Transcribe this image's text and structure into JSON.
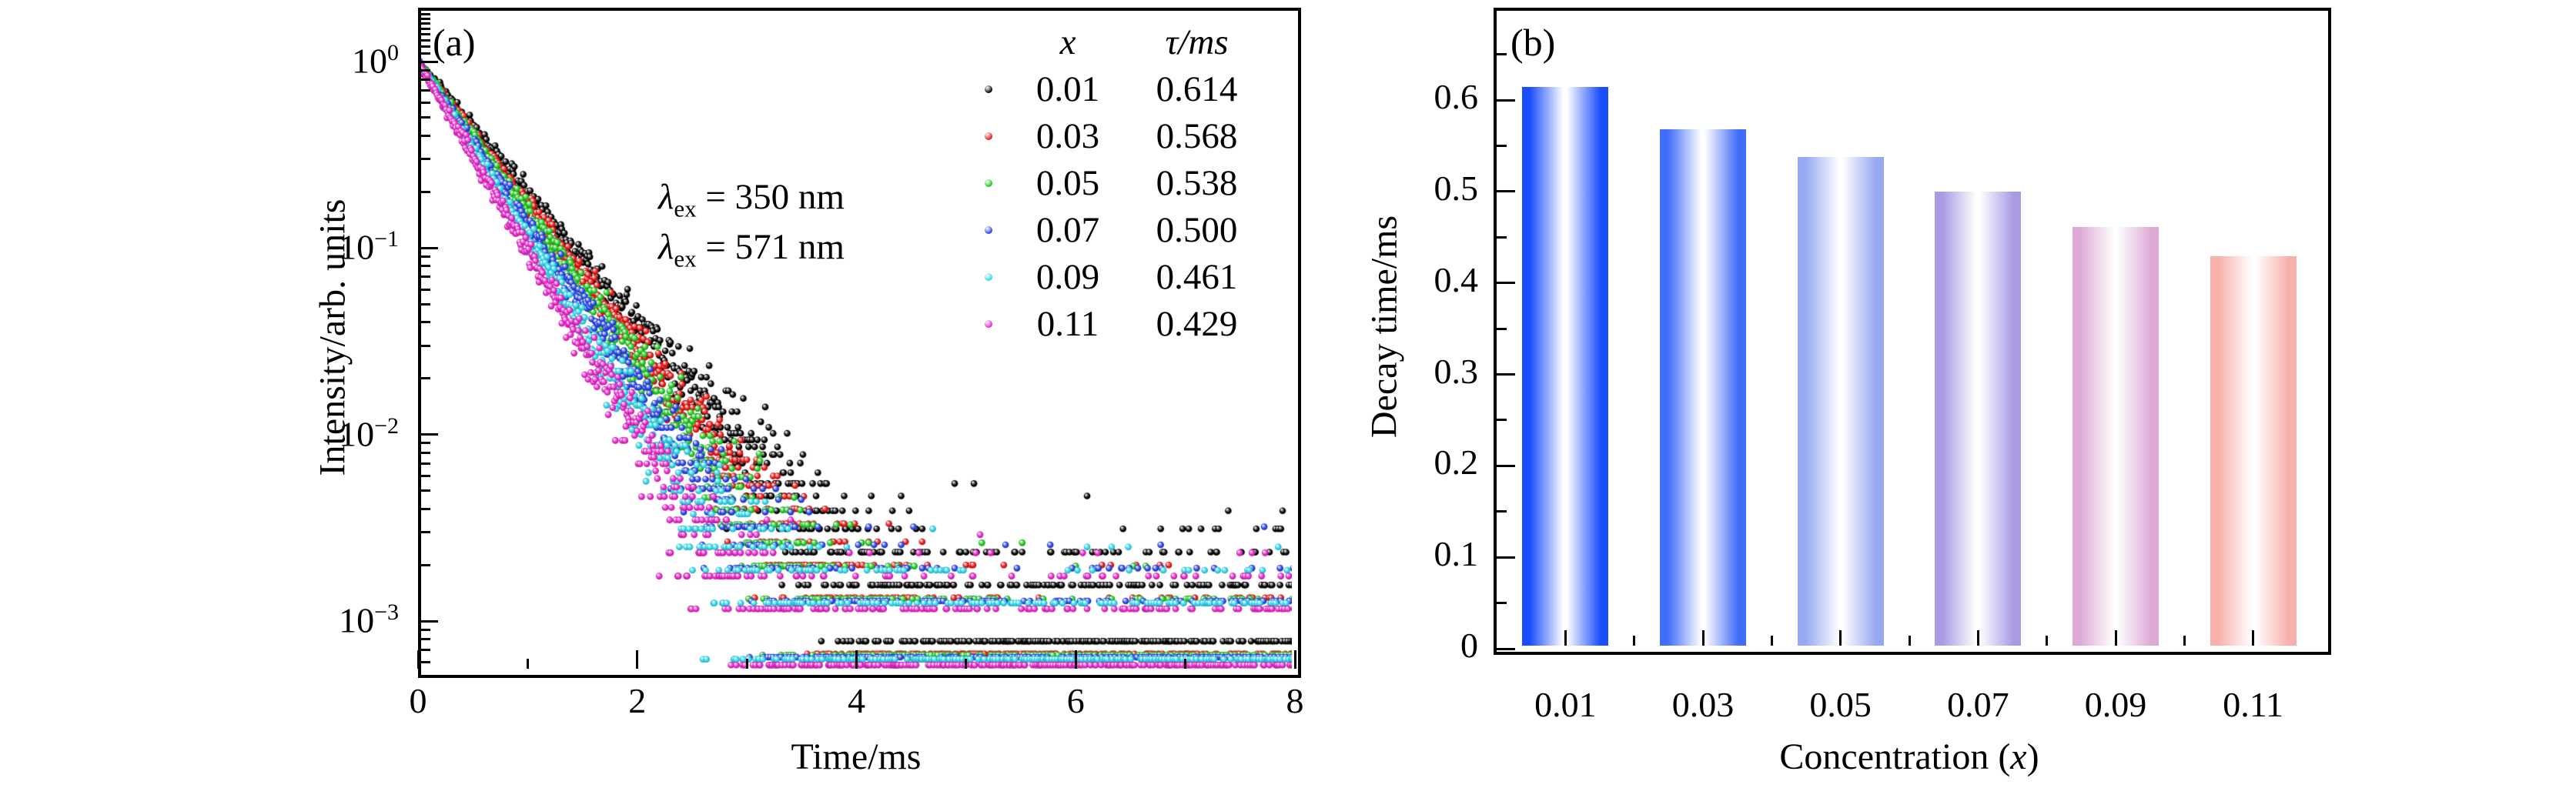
{
  "panel_a": {
    "label": "(a)",
    "xlabel": "Time/ms",
    "ylabel": "Intensity/arb. units",
    "annotations": [
      {
        "symbol": "λ",
        "subscript": "ex",
        "value": " = 350 nm"
      },
      {
        "symbol": "λ",
        "subscript": "ex",
        "value": " = 571 nm"
      }
    ],
    "legend": {
      "header": {
        "x": "x",
        "tau": "τ/ms"
      },
      "rows": [
        {
          "x": "0.01",
          "tau": "0.614",
          "color": "#000000"
        },
        {
          "x": "0.03",
          "tau": "0.568",
          "color": "#ee1111"
        },
        {
          "x": "0.05",
          "tau": "0.538",
          "color": "#1ecc1e"
        },
        {
          "x": "0.07",
          "tau": "0.500",
          "color": "#2442ee"
        },
        {
          "x": "0.09",
          "tau": "0.461",
          "color": "#2ad8ee"
        },
        {
          "x": "0.11",
          "tau": "0.429",
          "color": "#ee22cc"
        }
      ]
    }
  },
  "panel_b": {
    "label": "(b)",
    "ylabel": "Decay time/ms",
    "xlabel_prefix": "Concentration (",
    "xlabel_italic": "x",
    "xlabel_suffix": ")"
  },
  "chart_data": [
    {
      "type": "scatter",
      "panel": "(a)",
      "xlabel": "Time/ms",
      "ylabel": "Intensity/arb. units",
      "xlim": [
        0,
        8
      ],
      "xticks": [
        0,
        2,
        4,
        6,
        8
      ],
      "xticks_minor": [
        1,
        3,
        5,
        7
      ],
      "ylog": true,
      "ylim": [
        0.00053,
        1.95
      ],
      "ytick_exponents": [
        0,
        -1,
        -2,
        -3
      ],
      "model": "I(t) = exp(-t/tau_ms) normalized to 1 at t=0, with Poisson counting noise and a constant background floor",
      "sample_step_ms": 0.008,
      "series": [
        {
          "name": "x = 0.01",
          "tau_ms": 0.614,
          "color": "#000000",
          "sim_counts_scale": 1280,
          "sim_bg_counts": 1.2
        },
        {
          "name": "x = 0.03",
          "tau_ms": 0.568,
          "color": "#ee1111",
          "sim_counts_scale": 1500,
          "sim_bg_counts": 0.45
        },
        {
          "name": "x = 0.05",
          "tau_ms": 0.538,
          "color": "#1ecc1e",
          "sim_counts_scale": 1520,
          "sim_bg_counts": 0.5
        },
        {
          "name": "x = 0.07",
          "tau_ms": 0.5,
          "color": "#2442ee",
          "sim_counts_scale": 1560,
          "sim_bg_counts": 0.8
        },
        {
          "name": "x = 0.09",
          "tau_ms": 0.461,
          "color": "#2ad8ee",
          "sim_counts_scale": 1600,
          "sim_bg_counts": 0.9
        },
        {
          "name": "x = 0.11",
          "tau_ms": 0.429,
          "color": "#ee22cc",
          "sim_counts_scale": 1720,
          "sim_bg_counts": 0.95
        }
      ]
    },
    {
      "type": "bar",
      "panel": "(b)",
      "categories": [
        "0.01",
        "0.03",
        "0.05",
        "0.07",
        "0.09",
        "0.11"
      ],
      "values": [
        0.614,
        0.568,
        0.538,
        0.5,
        0.461,
        0.429
      ],
      "xlabel": "Concentration (x)",
      "ylabel": "Decay time/ms",
      "ylim": [
        0,
        0.7
      ],
      "yticks": [
        0,
        0.1,
        0.2,
        0.3,
        0.4,
        0.5,
        0.6
      ],
      "ytick_minor_step": 0.05,
      "bar_edge_colors": [
        "#1a4dfc",
        "#406cfa",
        "#96a8f2",
        "#aa9be4",
        "#deaad5",
        "#f8b0ab"
      ],
      "bar_center_color": "#ffffff",
      "grid": false,
      "legend": "none"
    }
  ]
}
